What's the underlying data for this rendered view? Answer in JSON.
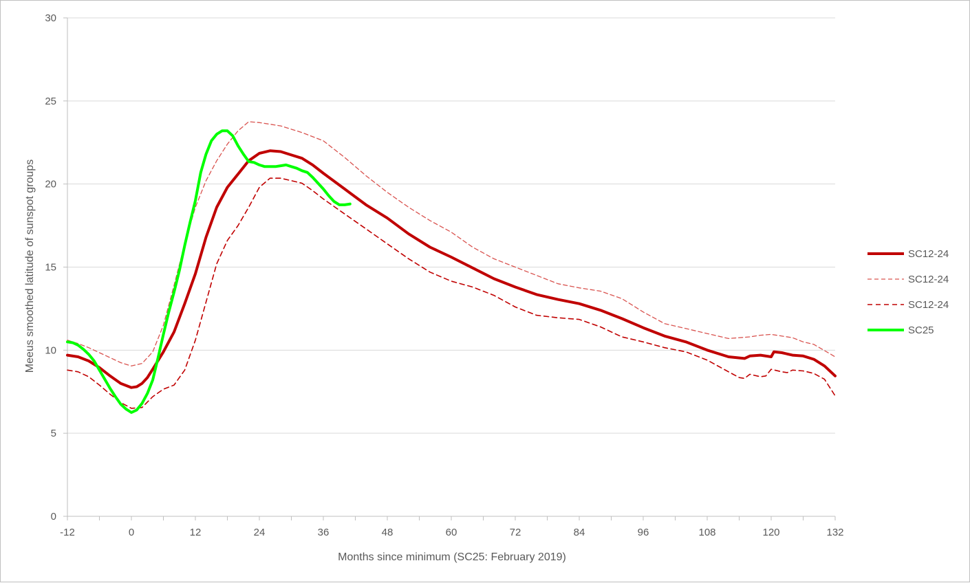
{
  "chart_data": {
    "type": "line",
    "xlabel": "Months since minimum (SC25: February 2019)",
    "ylabel": "Meeus smoothed latitude of sunspot groups",
    "xlim": [
      -12,
      132
    ],
    "ylim": [
      0,
      30
    ],
    "x_ticks": [
      -12,
      0,
      12,
      24,
      36,
      48,
      60,
      72,
      84,
      96,
      108,
      120,
      132
    ],
    "y_ticks": [
      0,
      5,
      10,
      15,
      20,
      25,
      30
    ],
    "grid": "horizontal",
    "legend_position": "right",
    "series": [
      {
        "name": "SC12-24",
        "color": "#c00000",
        "style": "solid-thick",
        "points": [
          [
            -12,
            9.7
          ],
          [
            -10,
            9.6
          ],
          [
            -8,
            9.35
          ],
          [
            -6,
            8.95
          ],
          [
            -4,
            8.45
          ],
          [
            -2,
            8.0
          ],
          [
            0,
            7.75
          ],
          [
            1,
            7.8
          ],
          [
            2,
            8.0
          ],
          [
            3,
            8.35
          ],
          [
            4,
            8.85
          ],
          [
            6,
            9.9
          ],
          [
            8,
            11.1
          ],
          [
            10,
            12.8
          ],
          [
            12,
            14.6
          ],
          [
            14,
            16.8
          ],
          [
            16,
            18.6
          ],
          [
            18,
            19.8
          ],
          [
            20,
            20.6
          ],
          [
            22,
            21.4
          ],
          [
            24,
            21.85
          ],
          [
            26,
            22.0
          ],
          [
            28,
            21.95
          ],
          [
            30,
            21.75
          ],
          [
            32,
            21.55
          ],
          [
            34,
            21.15
          ],
          [
            36,
            20.65
          ],
          [
            40,
            19.7
          ],
          [
            44,
            18.75
          ],
          [
            48,
            17.95
          ],
          [
            52,
            17.0
          ],
          [
            56,
            16.2
          ],
          [
            60,
            15.6
          ],
          [
            64,
            14.95
          ],
          [
            68,
            14.3
          ],
          [
            72,
            13.8
          ],
          [
            76,
            13.35
          ],
          [
            80,
            13.05
          ],
          [
            84,
            12.8
          ],
          [
            88,
            12.4
          ],
          [
            92,
            11.9
          ],
          [
            96,
            11.35
          ],
          [
            100,
            10.85
          ],
          [
            104,
            10.5
          ],
          [
            108,
            10.0
          ],
          [
            112,
            9.6
          ],
          [
            115,
            9.5
          ],
          [
            116,
            9.65
          ],
          [
            118,
            9.7
          ],
          [
            120,
            9.6
          ],
          [
            120.5,
            9.9
          ],
          [
            122,
            9.85
          ],
          [
            124,
            9.7
          ],
          [
            126,
            9.65
          ],
          [
            128,
            9.45
          ],
          [
            130,
            9.05
          ],
          [
            132,
            8.45
          ]
        ]
      },
      {
        "name": "SC12-24",
        "color": "#d9534f",
        "style": "dashed-thin",
        "points": [
          [
            -12,
            10.6
          ],
          [
            -10,
            10.4
          ],
          [
            -8,
            10.15
          ],
          [
            -6,
            9.85
          ],
          [
            -4,
            9.55
          ],
          [
            -2,
            9.25
          ],
          [
            0,
            9.05
          ],
          [
            2,
            9.2
          ],
          [
            4,
            9.9
          ],
          [
            6,
            11.5
          ],
          [
            8,
            13.9
          ],
          [
            10,
            16.4
          ],
          [
            12,
            18.6
          ],
          [
            14,
            20.2
          ],
          [
            16,
            21.4
          ],
          [
            18,
            22.4
          ],
          [
            20,
            23.2
          ],
          [
            22,
            23.75
          ],
          [
            24,
            23.7
          ],
          [
            28,
            23.5
          ],
          [
            32,
            23.1
          ],
          [
            36,
            22.6
          ],
          [
            40,
            21.6
          ],
          [
            44,
            20.5
          ],
          [
            48,
            19.5
          ],
          [
            52,
            18.6
          ],
          [
            56,
            17.8
          ],
          [
            60,
            17.1
          ],
          [
            64,
            16.2
          ],
          [
            68,
            15.5
          ],
          [
            72,
            15.0
          ],
          [
            76,
            14.5
          ],
          [
            80,
            14.0
          ],
          [
            84,
            13.75
          ],
          [
            88,
            13.55
          ],
          [
            92,
            13.1
          ],
          [
            96,
            12.3
          ],
          [
            100,
            11.6
          ],
          [
            104,
            11.3
          ],
          [
            108,
            11.0
          ],
          [
            112,
            10.7
          ],
          [
            116,
            10.8
          ],
          [
            118,
            10.9
          ],
          [
            120,
            10.95
          ],
          [
            124,
            10.75
          ],
          [
            126,
            10.5
          ],
          [
            128,
            10.35
          ],
          [
            132,
            9.6
          ]
        ]
      },
      {
        "name": "SC12-24",
        "color": "#c00000",
        "style": "dashed",
        "points": [
          [
            -12,
            8.8
          ],
          [
            -10,
            8.7
          ],
          [
            -8,
            8.4
          ],
          [
            -6,
            7.9
          ],
          [
            -4,
            7.35
          ],
          [
            -2,
            6.85
          ],
          [
            0,
            6.5
          ],
          [
            2,
            6.55
          ],
          [
            4,
            7.2
          ],
          [
            6,
            7.65
          ],
          [
            8,
            7.9
          ],
          [
            10,
            8.8
          ],
          [
            12,
            10.6
          ],
          [
            14,
            12.9
          ],
          [
            16,
            15.2
          ],
          [
            18,
            16.6
          ],
          [
            20,
            17.5
          ],
          [
            22,
            18.6
          ],
          [
            24,
            19.8
          ],
          [
            26,
            20.35
          ],
          [
            28,
            20.35
          ],
          [
            30,
            20.2
          ],
          [
            32,
            20.05
          ],
          [
            34,
            19.6
          ],
          [
            36,
            19.1
          ],
          [
            40,
            18.2
          ],
          [
            44,
            17.3
          ],
          [
            48,
            16.4
          ],
          [
            52,
            15.5
          ],
          [
            56,
            14.7
          ],
          [
            60,
            14.15
          ],
          [
            64,
            13.8
          ],
          [
            68,
            13.3
          ],
          [
            72,
            12.6
          ],
          [
            76,
            12.1
          ],
          [
            80,
            11.95
          ],
          [
            84,
            11.85
          ],
          [
            88,
            11.4
          ],
          [
            92,
            10.8
          ],
          [
            96,
            10.5
          ],
          [
            100,
            10.15
          ],
          [
            104,
            9.9
          ],
          [
            108,
            9.4
          ],
          [
            112,
            8.7
          ],
          [
            114,
            8.35
          ],
          [
            115,
            8.3
          ],
          [
            116,
            8.55
          ],
          [
            118,
            8.4
          ],
          [
            119,
            8.45
          ],
          [
            120,
            8.85
          ],
          [
            122,
            8.7
          ],
          [
            123,
            8.65
          ],
          [
            124,
            8.8
          ],
          [
            126,
            8.75
          ],
          [
            128,
            8.6
          ],
          [
            130,
            8.25
          ],
          [
            132,
            7.25
          ]
        ]
      },
      {
        "name": "SC25",
        "color": "#00ff00",
        "style": "solid-thick",
        "points": [
          [
            -12,
            10.5
          ],
          [
            -11,
            10.45
          ],
          [
            -10,
            10.3
          ],
          [
            -9,
            10.05
          ],
          [
            -8,
            9.75
          ],
          [
            -7,
            9.35
          ],
          [
            -6,
            8.8
          ],
          [
            -5,
            8.25
          ],
          [
            -4,
            7.7
          ],
          [
            -3,
            7.2
          ],
          [
            -2,
            6.75
          ],
          [
            -1,
            6.45
          ],
          [
            0,
            6.25
          ],
          [
            1,
            6.4
          ],
          [
            2,
            6.8
          ],
          [
            3,
            7.4
          ],
          [
            4,
            8.2
          ],
          [
            5,
            9.55
          ],
          [
            6,
            10.95
          ],
          [
            7,
            12.3
          ],
          [
            8,
            13.5
          ],
          [
            9,
            14.8
          ],
          [
            10,
            16.3
          ],
          [
            11,
            17.7
          ],
          [
            12,
            19.0
          ],
          [
            13,
            20.7
          ],
          [
            14,
            21.8
          ],
          [
            15,
            22.6
          ],
          [
            16,
            23.0
          ],
          [
            17,
            23.2
          ],
          [
            18,
            23.2
          ],
          [
            19,
            22.9
          ],
          [
            20,
            22.3
          ],
          [
            21,
            21.8
          ],
          [
            22,
            21.35
          ],
          [
            23,
            21.3
          ],
          [
            24,
            21.15
          ],
          [
            25,
            21.05
          ],
          [
            26,
            21.05
          ],
          [
            27,
            21.05
          ],
          [
            28,
            21.1
          ],
          [
            29,
            21.15
          ],
          [
            30,
            21.05
          ],
          [
            31,
            20.95
          ],
          [
            32,
            20.8
          ],
          [
            33,
            20.7
          ],
          [
            34,
            20.4
          ],
          [
            35,
            20.05
          ],
          [
            36,
            19.7
          ],
          [
            37,
            19.3
          ],
          [
            38,
            18.95
          ],
          [
            39,
            18.75
          ],
          [
            40,
            18.75
          ],
          [
            41,
            18.8
          ]
        ]
      }
    ]
  }
}
